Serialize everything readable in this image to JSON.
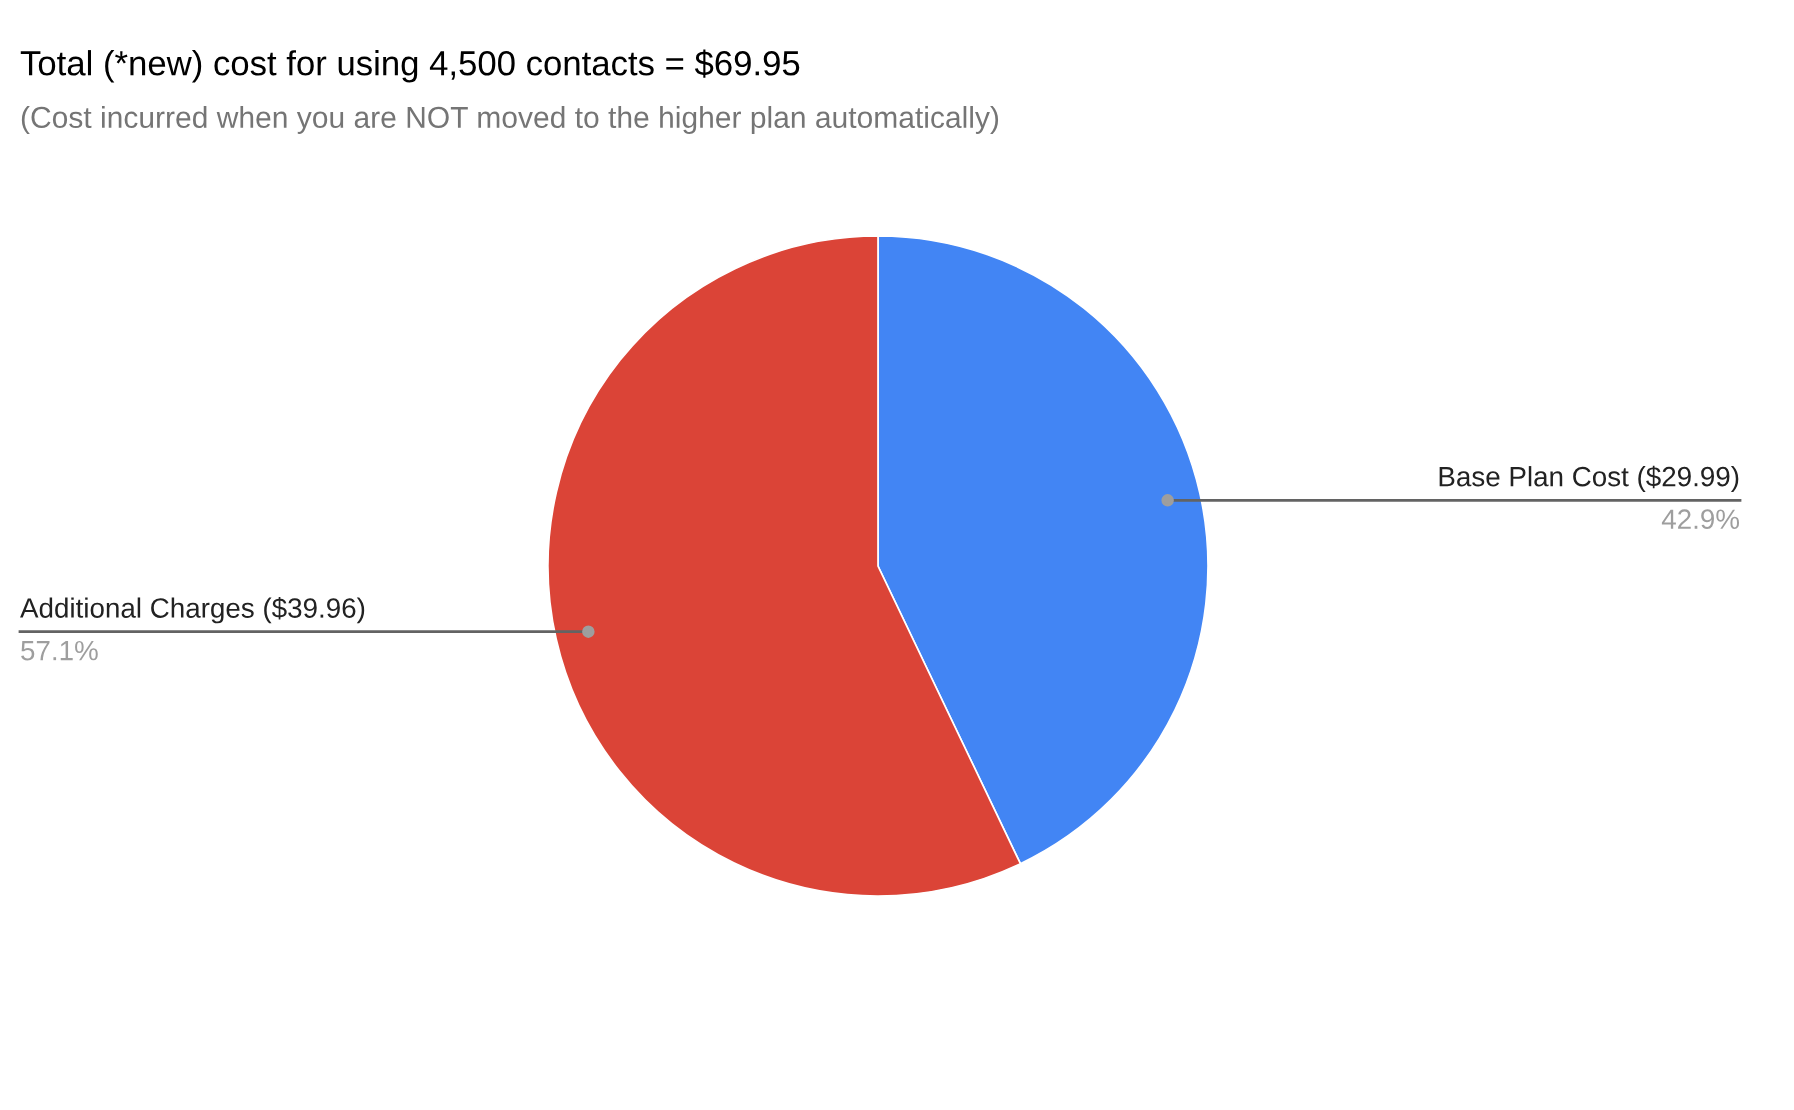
{
  "chart_data": {
    "type": "pie",
    "title": "Total (*new) cost for using 4,500 contacts = $69.95",
    "subtitle": "(Cost incurred when you are NOT moved to the higher plan automatically)",
    "categories": [
      "Base Plan Cost ($29.99)",
      "Additional Charges ($39.96)"
    ],
    "values": [
      42.9,
      57.1
    ],
    "colors": [
      "#4285f4",
      "#db4437"
    ],
    "value_labels": [
      "42.9%",
      "57.1%"
    ]
  }
}
